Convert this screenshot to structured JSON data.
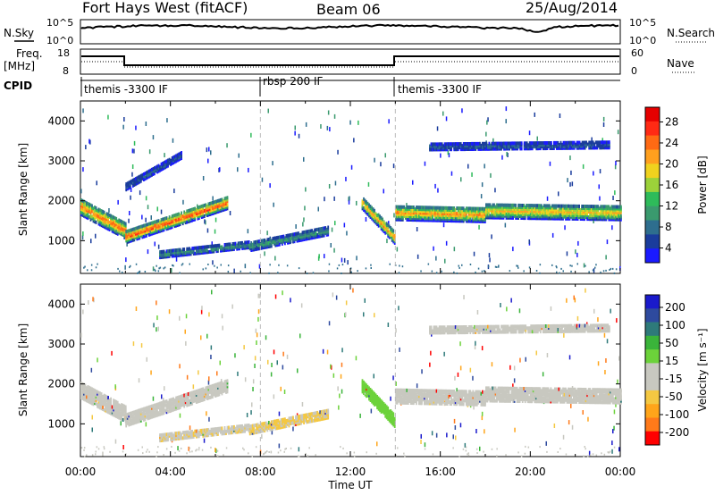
{
  "header": {
    "station": "Fort Hays West (fitACF)",
    "beam": "Beam 06",
    "date": "25/Aug/2014"
  },
  "noise_panel": {
    "left_label": "N.Sky",
    "right_label": "N.Search",
    "left_ticks": [
      "10^5",
      "10^0"
    ],
    "right_ticks": [
      "10^5",
      "10^0"
    ]
  },
  "freq_panel": {
    "left_label": "Freq.",
    "left_unit": "[MHz]",
    "right_label": "Nave",
    "left_ticks": [
      "18",
      "8"
    ],
    "right_ticks": [
      "60",
      "0"
    ]
  },
  "cpid_panel": {
    "label": "CPID",
    "segments": [
      {
        "start": 0.0,
        "end": 8.0,
        "name": "themis -3300 IF"
      },
      {
        "start": 8.0,
        "end": 14.0,
        "name": "rbsp 200 IF"
      },
      {
        "start": 14.0,
        "end": 24.0,
        "name": "themis -3300 IF"
      }
    ]
  },
  "colors": {
    "power_scale": [
      "#1a1aff",
      "#1a3c9c",
      "#2e6e8e",
      "#3a9a6e",
      "#2ebb5a",
      "#9cd23a",
      "#f0d21e",
      "#ffa01e",
      "#ff6a14",
      "#ff2a14",
      "#e60000"
    ],
    "velocity_scale": [
      "#ff0000",
      "#ff7a1a",
      "#ffa51a",
      "#f4c842",
      "#c8c8c0",
      "#c8c8c0",
      "#6cd23a",
      "#3ab43a",
      "#2e7a7a",
      "#2e4a9e",
      "#1a1acc"
    ],
    "ground_scatter": "#c8c8c0"
  },
  "chart_data": [
    {
      "type": "heatmap",
      "name": "power",
      "xlabel": "",
      "ylabel": "Slant Range [km]",
      "xlim": [
        0,
        24
      ],
      "ylim": [
        180,
        4500
      ],
      "yticks": [
        1000,
        2000,
        3000,
        4000
      ],
      "colorbar": {
        "label": "Power [dB]",
        "ticks": [
          "28",
          "24",
          "20",
          "16",
          "12",
          "8",
          "4"
        ],
        "range": [
          0,
          30
        ]
      },
      "bands": [
        {
          "t": [
            0.0,
            2.0
          ],
          "r_start": 1900,
          "r_end": 1300,
          "width": 400,
          "peak": 24
        },
        {
          "t": [
            2.0,
            6.5
          ],
          "r_start": 1150,
          "r_end": 2000,
          "width": 300,
          "peak": 26
        },
        {
          "t": [
            3.5,
            7.5
          ],
          "r_start": 700,
          "r_end": 950,
          "width": 150,
          "peak": 10
        },
        {
          "t": [
            7.5,
            11.0
          ],
          "r_start": 900,
          "r_end": 1300,
          "width": 200,
          "peak": 10
        },
        {
          "t": [
            12.5,
            14.0
          ],
          "r_start": 2000,
          "r_end": 1100,
          "width": 300,
          "peak": 22
        },
        {
          "t": [
            14.0,
            18.0
          ],
          "r_start": 1750,
          "r_end": 1700,
          "width": 350,
          "peak": 22
        },
        {
          "t": [
            18.0,
            24.0
          ],
          "r_start": 1800,
          "r_end": 1750,
          "width": 350,
          "peak": 20
        },
        {
          "t": [
            15.5,
            23.5
          ],
          "r_start": 3400,
          "r_end": 3450,
          "width": 150,
          "peak": 6
        },
        {
          "t": [
            2.0,
            4.5
          ],
          "r_start": 2400,
          "r_end": 3200,
          "width": 150,
          "peak": 6
        }
      ]
    },
    {
      "type": "heatmap",
      "name": "velocity",
      "xlabel": "Time UT",
      "ylabel": "Slant Range [km]",
      "xlim": [
        0,
        24
      ],
      "ylim": [
        180,
        4500
      ],
      "yticks": [
        1000,
        2000,
        3000,
        4000
      ],
      "xticks": [
        "00:00",
        "04:00",
        "08:00",
        "12:00",
        "16:00",
        "20:00",
        "00:00"
      ],
      "colorbar": {
        "label": "Velocity [m s⁻¹]",
        "ticks": [
          "200",
          "100",
          "50",
          "15",
          "-15",
          "-50",
          "-100",
          "-200"
        ],
        "range": [
          -250,
          250
        ]
      },
      "bands": [
        {
          "t": [
            0.0,
            2.0
          ],
          "r_start": 1900,
          "r_end": 1300,
          "width": 400,
          "v": 0
        },
        {
          "t": [
            2.0,
            6.5
          ],
          "r_start": 1150,
          "r_end": 2000,
          "width": 300,
          "v": 0
        },
        {
          "t": [
            3.5,
            7.5
          ],
          "r_start": 700,
          "r_end": 950,
          "width": 150,
          "v": -60
        },
        {
          "t": [
            7.5,
            11.0
          ],
          "r_start": 900,
          "r_end": 1300,
          "width": 200,
          "v": -70
        },
        {
          "t": [
            12.5,
            14.0
          ],
          "r_start": 2000,
          "r_end": 1100,
          "width": 300,
          "v": 40
        },
        {
          "t": [
            14.0,
            18.0
          ],
          "r_start": 1750,
          "r_end": 1700,
          "width": 350,
          "v": 0
        },
        {
          "t": [
            18.0,
            24.0
          ],
          "r_start": 1800,
          "r_end": 1750,
          "width": 350,
          "v": 0
        },
        {
          "t": [
            15.5,
            23.5
          ],
          "r_start": 3400,
          "r_end": 3450,
          "width": 150,
          "v": 0
        }
      ]
    }
  ]
}
